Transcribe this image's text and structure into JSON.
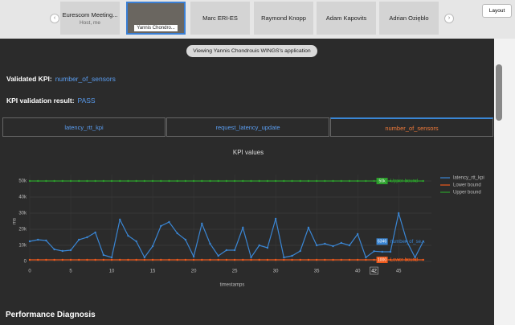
{
  "meeting": {
    "tiles": [
      {
        "name": "Eurescom Meeting...",
        "role": "Host, me"
      },
      {
        "name": "Yannis Chondro..."
      },
      {
        "name": "Marc ERI-ES"
      },
      {
        "name": "Raymond Knopp"
      },
      {
        "name": "Adam Kapovits"
      },
      {
        "name": "Adrian Ozięblo"
      }
    ],
    "layout_button": "Layout",
    "share_banner": "Viewing Yannis Chondrouis WINGS's application"
  },
  "app": {
    "validated_label": "Validated KPI:",
    "validated_value": "number_of_sensors",
    "result_label": "KPI validation result:",
    "result_value": "PASS",
    "tabs": [
      "latency_rtt_kpi",
      "request_latency_update",
      "number_of_sensors"
    ],
    "section": "Performance Diagnosis"
  },
  "chart": {
    "type": "line",
    "title": "KPI values",
    "x_label": "timestamps",
    "y_label": "ms",
    "x": [
      0,
      1,
      2,
      3,
      4,
      5,
      6,
      7,
      8,
      9,
      10,
      11,
      12,
      13,
      14,
      15,
      16,
      17,
      18,
      19,
      20,
      21,
      22,
      23,
      24,
      25,
      26,
      27,
      28,
      29,
      30,
      31,
      32,
      33,
      34,
      35,
      36,
      37,
      38,
      39,
      40,
      41,
      42,
      43,
      44,
      45,
      46,
      47,
      48
    ],
    "series": [
      {
        "name": "latency_rtt_kpi",
        "color": "#3a86d4",
        "hover_name": "number_of_se...",
        "values": [
          12500,
          13500,
          13000,
          7500,
          6500,
          7000,
          13500,
          15000,
          18000,
          4000,
          2500,
          26000,
          16000,
          12500,
          2500,
          9500,
          22000,
          24500,
          17500,
          13500,
          3000,
          23500,
          11000,
          3500,
          7000,
          7000,
          21000,
          2500,
          10000,
          8500,
          26500,
          2500,
          3500,
          6500,
          21000,
          10000,
          11000,
          9500,
          11500,
          10000,
          17000,
          2500,
          6346,
          6000,
          6000,
          30000,
          12500,
          2500,
          12500
        ]
      },
      {
        "name": "Lower bound",
        "color": "#ef5a1c",
        "hover_name": "Lower bound",
        "values": [
          1000,
          1000,
          1000,
          1000,
          1000,
          1000,
          1000,
          1000,
          1000,
          1000,
          1000,
          1000,
          1000,
          1000,
          1000,
          1000,
          1000,
          1000,
          1000,
          1000,
          1000,
          1000,
          1000,
          1000,
          1000,
          1000,
          1000,
          1000,
          1000,
          1000,
          1000,
          1000,
          1000,
          1000,
          1000,
          1000,
          1000,
          1000,
          1000,
          1000,
          1000,
          1000,
          1000,
          1000,
          1000,
          1000,
          1000,
          1000,
          1000
        ]
      },
      {
        "name": "Upper bound",
        "color": "#2ca02c",
        "hover_name": "Upper bound",
        "hover_label": "50k",
        "values": [
          50000,
          50000,
          50000,
          50000,
          50000,
          50000,
          50000,
          50000,
          50000,
          50000,
          50000,
          50000,
          50000,
          50000,
          50000,
          50000,
          50000,
          50000,
          50000,
          50000,
          50000,
          50000,
          50000,
          50000,
          50000,
          50000,
          50000,
          50000,
          50000,
          50000,
          50000,
          50000,
          50000,
          50000,
          50000,
          50000,
          50000,
          50000,
          50000,
          50000,
          50000,
          50000,
          50000,
          50000,
          50000,
          50000,
          50000,
          50000,
          50000
        ]
      }
    ],
    "hover_x": 42,
    "xlim": [
      0,
      49
    ],
    "ylim": [
      -2000,
      54000
    ],
    "xticks": [
      0,
      5,
      10,
      15,
      20,
      25,
      30,
      35,
      40,
      45
    ],
    "yticks": [
      0,
      {
        "value": 10000,
        "label": "10k"
      },
      {
        "value": 20000,
        "label": "20k"
      },
      {
        "value": 30000,
        "label": "30k"
      },
      {
        "value": 40000,
        "label": "40k"
      },
      {
        "value": 50000,
        "label": "50k"
      }
    ],
    "grid": true
  }
}
